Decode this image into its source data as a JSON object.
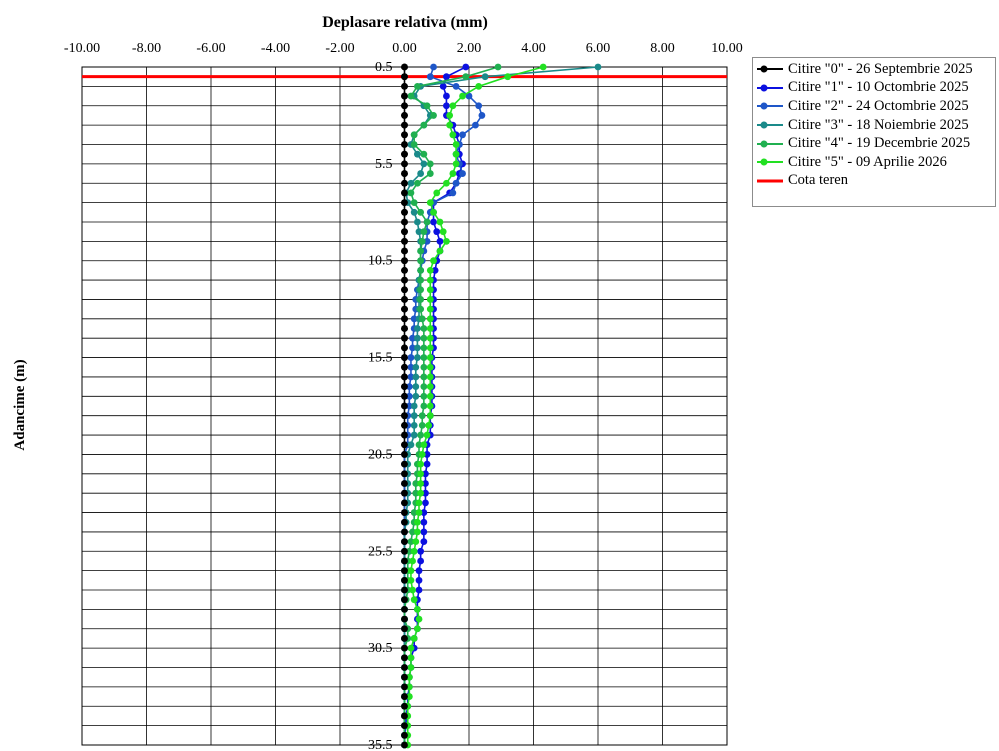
{
  "chart_data": {
    "type": "line",
    "title": "Deplasare  relativa  (mm)",
    "xlabel": "Deplasare  relativa  (mm)",
    "ylabel": "Adancime  (m)",
    "xlim": [
      -10,
      10
    ],
    "ylim": [
      0.5,
      35.5
    ],
    "y_inverted": true,
    "x_ticks": [
      "-10.00",
      "-8.00",
      "-6.00",
      "-4.00",
      "-2.00",
      "0.00",
      "2.00",
      "4.00",
      "6.00",
      "8.00",
      "10.00"
    ],
    "y_tick_labels": [
      {
        "depth": 0.5,
        "label": "0.5"
      },
      {
        "depth": 5.5,
        "label": "5.5"
      },
      {
        "depth": 10.5,
        "label": "10.5"
      },
      {
        "depth": 15.5,
        "label": "15.5"
      },
      {
        "depth": 20.5,
        "label": "20.5"
      },
      {
        "depth": 25.5,
        "label": "25.5"
      },
      {
        "depth": 30.5,
        "label": "30.5"
      },
      {
        "depth": 35.5,
        "label": "35.5"
      }
    ],
    "grid": true,
    "legend_position": "right",
    "depths": [
      0.5,
      1,
      1.5,
      2,
      2.5,
      3,
      3.5,
      4,
      4.5,
      5,
      5.5,
      6,
      6.5,
      7,
      7.5,
      8,
      8.5,
      9,
      9.5,
      10,
      10.5,
      11,
      11.5,
      12,
      12.5,
      13,
      13.5,
      14,
      14.5,
      15,
      15.5,
      16,
      16.5,
      17,
      17.5,
      18,
      18.5,
      19,
      19.5,
      20,
      20.5,
      21,
      21.5,
      22,
      22.5,
      23,
      23.5,
      24,
      24.5,
      25,
      25.5,
      26,
      26.5,
      27,
      27.5,
      28,
      28.5,
      29,
      29.5,
      30,
      30.5,
      31,
      31.5,
      32,
      32.5,
      33,
      33.5,
      34,
      34.5,
      35,
      35.5
    ],
    "series": [
      {
        "name": "Citire \"0\" - 26 Septembrie 2025",
        "color": "#000000",
        "values": [
          0,
          0,
          0,
          0,
          0,
          0,
          0,
          0,
          0,
          0,
          0,
          0,
          0,
          0,
          0,
          0,
          0,
          0,
          0,
          0,
          0,
          0,
          0,
          0,
          0,
          0,
          0,
          0,
          0,
          0,
          0,
          0,
          0,
          0,
          0,
          0,
          0,
          0,
          0,
          0,
          0,
          0,
          0,
          0,
          0,
          0,
          0,
          0,
          0,
          0,
          0,
          0,
          0,
          0,
          0,
          0,
          0,
          0,
          0,
          0,
          0,
          0,
          0,
          0,
          0,
          0,
          0,
          0,
          0,
          0,
          0
        ]
      },
      {
        "name": "Citire \"1\" - 10 Octombrie 2025",
        "color": "#0b10e0",
        "values": [
          1.9,
          1.3,
          1.2,
          1.3,
          1.3,
          1.3,
          1.5,
          1.6,
          1.7,
          1.7,
          1.8,
          1.7,
          1.6,
          1.4,
          0.9,
          0.9,
          0.9,
          1.0,
          1.1,
          1.1,
          1.0,
          0.95,
          0.9,
          0.9,
          0.9,
          0.9,
          0.9,
          0.9,
          0.9,
          0.9,
          0.85,
          0.85,
          0.85,
          0.85,
          0.85,
          0.85,
          0.8,
          0.8,
          0.8,
          0.7,
          0.7,
          0.7,
          0.65,
          0.65,
          0.65,
          0.65,
          0.6,
          0.6,
          0.6,
          0.6,
          0.5,
          0.5,
          0.45,
          0.45,
          0.45,
          0.4,
          0.4,
          0.4,
          0.4,
          0.3,
          0.3,
          0.2,
          0.2,
          0.15,
          0.15,
          0.1,
          0.1,
          0.05,
          0.05,
          0.0,
          0.0
        ]
      },
      {
        "name": "Citire \"2\" - 24 Octombrie 2025",
        "color": "#1e56c8",
        "values": [
          0.9,
          0.8,
          1.6,
          2.0,
          2.3,
          2.4,
          2.2,
          1.8,
          1.7,
          1.6,
          1.7,
          1.8,
          1.6,
          1.5,
          0.9,
          0.8,
          0.7,
          0.7,
          0.7,
          0.6,
          0.55,
          0.5,
          0.45,
          0.4,
          0.35,
          0.35,
          0.3,
          0.3,
          0.25,
          0.25,
          0.2,
          0.2,
          0.2,
          0.15,
          0.15,
          0.15,
          0.1,
          0.1,
          0.1,
          0.1,
          0.0,
          0.0,
          0.0,
          0.0,
          0.0,
          0.0,
          0.0,
          0.0,
          0.0,
          0.0,
          0.0,
          0.0,
          0.0,
          0.0,
          0.0,
          0.0,
          0.0,
          0.0,
          0.0,
          0.0,
          0.0,
          0.0,
          0.0,
          0.0,
          0.0,
          0.0,
          0.0,
          0.0,
          0.0,
          0.0,
          0.0
        ]
      },
      {
        "name": "Citire \"3\" - 18 Noiembrie 2025",
        "color": "#1a8a8a",
        "values": [
          6.0,
          2.5,
          0.5,
          0.3,
          0.6,
          0.8,
          0.6,
          0.3,
          0.2,
          0.4,
          0.6,
          0.5,
          0.2,
          0.05,
          0.1,
          0.3,
          0.4,
          0.45,
          0.5,
          0.5,
          0.5,
          0.5,
          0.45,
          0.45,
          0.45,
          0.45,
          0.45,
          0.4,
          0.4,
          0.4,
          0.4,
          0.35,
          0.35,
          0.35,
          0.35,
          0.3,
          0.3,
          0.3,
          0.3,
          0.2,
          0.1,
          0.1,
          0.1,
          0.1,
          0.1,
          0.1,
          0.05,
          0.05,
          0.0,
          0.0,
          0.0,
          0.0,
          0.0,
          0.0,
          0.0,
          0.0,
          0.0,
          0.0,
          0.0,
          0.0,
          0.0,
          0.0,
          0.0,
          0.0,
          0.0,
          0.0,
          0.0,
          0.0,
          0.0,
          0.0,
          0.0
        ]
      },
      {
        "name": "Citire \"4\" - 19 Decembrie 2025",
        "color": "#20b050",
        "values": [
          2.9,
          1.9,
          0.4,
          0.2,
          0.7,
          0.9,
          0.6,
          0.3,
          0.3,
          0.6,
          0.8,
          0.8,
          0.4,
          0.2,
          0.3,
          0.5,
          0.7,
          0.6,
          0.55,
          0.5,
          0.5,
          0.5,
          0.5,
          0.5,
          0.5,
          0.5,
          0.55,
          0.6,
          0.6,
          0.6,
          0.6,
          0.6,
          0.6,
          0.6,
          0.6,
          0.6,
          0.55,
          0.55,
          0.5,
          0.45,
          0.45,
          0.4,
          0.4,
          0.35,
          0.35,
          0.35,
          0.3,
          0.3,
          0.25,
          0.2,
          0.15,
          0.1,
          0.1,
          0.1,
          0.1,
          0.05,
          0.0,
          0.0,
          0.1,
          0.1,
          0.0,
          0.0,
          0.0,
          0.0,
          0.0,
          0.0,
          0.0,
          0.0,
          0.0,
          0.0,
          0.0
        ]
      },
      {
        "name": "Citire \"5\" - 09 Aprilie 2026",
        "color": "#22e022",
        "values": [
          4.3,
          3.2,
          2.3,
          1.8,
          1.5,
          1.4,
          1.4,
          1.5,
          1.6,
          1.6,
          1.6,
          1.5,
          1.3,
          1.0,
          0.8,
          0.9,
          1.1,
          1.2,
          1.3,
          1.1,
          0.9,
          0.8,
          0.8,
          0.8,
          0.8,
          0.8,
          0.8,
          0.8,
          0.8,
          0.8,
          0.8,
          0.8,
          0.8,
          0.8,
          0.8,
          0.8,
          0.8,
          0.75,
          0.7,
          0.6,
          0.55,
          0.5,
          0.5,
          0.5,
          0.5,
          0.45,
          0.45,
          0.4,
          0.4,
          0.35,
          0.3,
          0.25,
          0.2,
          0.2,
          0.25,
          0.3,
          0.4,
          0.45,
          0.4,
          0.3,
          0.2,
          0.2,
          0.2,
          0.15,
          0.15,
          0.15,
          0.1,
          0.1,
          0.1,
          0.1,
          0.1
        ]
      }
    ],
    "reference_lines": [
      {
        "name": "Cota teren",
        "color": "#ff0000",
        "depth": 1.0
      }
    ]
  }
}
